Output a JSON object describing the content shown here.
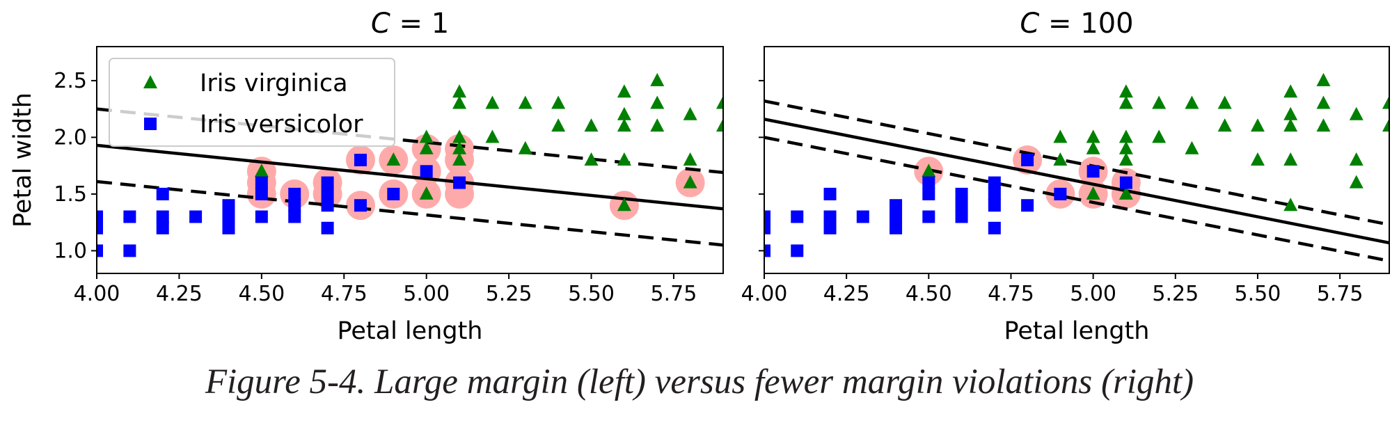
{
  "caption": "Figure 5-4. Large margin (left) versus fewer margin violations (right)",
  "colors": {
    "virginica": "#008000",
    "versicolor": "#0000ff",
    "support_vector": "#ffaaaa"
  },
  "chart_data": [
    {
      "type": "scatter",
      "title": "C = 1",
      "xlabel": "Petal length",
      "ylabel": "Petal width",
      "xlim": [
        4.0,
        5.9
      ],
      "ylim": [
        0.8,
        2.8
      ],
      "xticks": [
        "4.00",
        "4.25",
        "4.50",
        "4.75",
        "5.00",
        "5.25",
        "5.50",
        "5.75"
      ],
      "yticks": [
        "1.0",
        "1.5",
        "2.0",
        "2.5"
      ],
      "legend": {
        "position": "upper-left",
        "entries": [
          "Iris virginica",
          "Iris versicolor"
        ]
      },
      "decision_boundary": [
        [
          4.0,
          1.93
        ],
        [
          5.9,
          1.37
        ]
      ],
      "margin_upper": [
        [
          4.0,
          2.25
        ],
        [
          5.9,
          1.69
        ]
      ],
      "margin_lower": [
        [
          4.0,
          1.61
        ],
        [
          5.9,
          1.05
        ]
      ],
      "series": [
        {
          "name": "Iris virginica",
          "marker": "triangle",
          "points": [
            [
              4.5,
              1.7
            ],
            [
              4.9,
              1.8
            ],
            [
              5.0,
              2.0
            ],
            [
              5.0,
              1.9
            ],
            [
              5.0,
              1.5
            ],
            [
              5.1,
              2.4
            ],
            [
              5.1,
              2.3
            ],
            [
              5.1,
              2.0
            ],
            [
              5.1,
              1.9
            ],
            [
              5.1,
              1.8
            ],
            [
              5.2,
              2.3
            ],
            [
              5.2,
              2.0
            ],
            [
              5.3,
              2.3
            ],
            [
              5.3,
              1.9
            ],
            [
              5.4,
              2.3
            ],
            [
              5.4,
              2.1
            ],
            [
              5.5,
              2.1
            ],
            [
              5.5,
              1.8
            ],
            [
              5.6,
              2.4
            ],
            [
              5.6,
              2.2
            ],
            [
              5.6,
              2.1
            ],
            [
              5.6,
              1.8
            ],
            [
              5.6,
              1.4
            ],
            [
              5.7,
              2.5
            ],
            [
              5.7,
              2.3
            ],
            [
              5.7,
              2.1
            ],
            [
              5.8,
              2.2
            ],
            [
              5.8,
              1.8
            ],
            [
              5.8,
              1.6
            ],
            [
              5.9,
              2.3
            ],
            [
              5.9,
              2.1
            ]
          ]
        },
        {
          "name": "Iris versicolor",
          "marker": "square",
          "points": [
            [
              4.0,
              1.3
            ],
            [
              4.0,
              1.2
            ],
            [
              4.0,
              1.0
            ],
            [
              4.1,
              1.3
            ],
            [
              4.1,
              1.0
            ],
            [
              4.2,
              1.5
            ],
            [
              4.2,
              1.3
            ],
            [
              4.2,
              1.2
            ],
            [
              4.3,
              1.3
            ],
            [
              4.4,
              1.4
            ],
            [
              4.4,
              1.3
            ],
            [
              4.4,
              1.2
            ],
            [
              4.5,
              1.6
            ],
            [
              4.5,
              1.5
            ],
            [
              4.5,
              1.3
            ],
            [
              4.6,
              1.5
            ],
            [
              4.6,
              1.4
            ],
            [
              4.6,
              1.3
            ],
            [
              4.7,
              1.6
            ],
            [
              4.7,
              1.5
            ],
            [
              4.7,
              1.4
            ],
            [
              4.7,
              1.2
            ],
            [
              4.8,
              1.8
            ],
            [
              4.8,
              1.4
            ],
            [
              4.9,
              1.5
            ],
            [
              5.0,
              1.7
            ],
            [
              5.1,
              1.6
            ]
          ]
        }
      ],
      "support_vectors": [
        [
          4.5,
          1.7
        ],
        [
          4.5,
          1.6
        ],
        [
          4.5,
          1.5
        ],
        [
          4.6,
          1.5
        ],
        [
          4.7,
          1.6
        ],
        [
          4.7,
          1.5
        ],
        [
          4.8,
          1.8
        ],
        [
          4.8,
          1.4
        ],
        [
          4.9,
          1.8
        ],
        [
          4.9,
          1.5
        ],
        [
          5.0,
          1.9
        ],
        [
          5.0,
          1.7
        ],
        [
          5.0,
          1.5
        ],
        [
          5.1,
          1.9
        ],
        [
          5.1,
          1.8
        ],
        [
          5.1,
          1.6
        ],
        [
          5.1,
          1.5
        ],
        [
          5.6,
          1.4
        ],
        [
          5.8,
          1.6
        ]
      ]
    },
    {
      "type": "scatter",
      "title": "C = 100",
      "xlabel": "Petal length",
      "ylabel": "",
      "xlim": [
        4.0,
        5.9
      ],
      "ylim": [
        0.8,
        2.8
      ],
      "xticks": [
        "4.00",
        "4.25",
        "4.50",
        "4.75",
        "5.00",
        "5.25",
        "5.50",
        "5.75"
      ],
      "yticks": [],
      "decision_boundary": [
        [
          4.0,
          2.16
        ],
        [
          5.9,
          1.07
        ]
      ],
      "margin_upper": [
        [
          4.0,
          2.32
        ],
        [
          5.9,
          1.23
        ]
      ],
      "margin_lower": [
        [
          4.0,
          2.0
        ],
        [
          5.9,
          0.91
        ]
      ],
      "series": [
        {
          "name": "Iris virginica",
          "marker": "triangle",
          "points": [
            [
              4.5,
              1.7
            ],
            [
              4.9,
              2.0
            ],
            [
              4.9,
              1.8
            ],
            [
              5.0,
              2.0
            ],
            [
              5.0,
              1.9
            ],
            [
              5.0,
              1.5
            ],
            [
              5.1,
              2.4
            ],
            [
              5.1,
              2.3
            ],
            [
              5.1,
              2.0
            ],
            [
              5.1,
              1.9
            ],
            [
              5.1,
              1.8
            ],
            [
              5.1,
              1.5
            ],
            [
              5.2,
              2.3
            ],
            [
              5.2,
              2.0
            ],
            [
              5.3,
              2.3
            ],
            [
              5.3,
              1.9
            ],
            [
              5.4,
              2.3
            ],
            [
              5.4,
              2.1
            ],
            [
              5.5,
              2.1
            ],
            [
              5.5,
              1.8
            ],
            [
              5.6,
              2.4
            ],
            [
              5.6,
              2.2
            ],
            [
              5.6,
              2.1
            ],
            [
              5.6,
              1.8
            ],
            [
              5.6,
              1.4
            ],
            [
              5.7,
              2.5
            ],
            [
              5.7,
              2.3
            ],
            [
              5.7,
              2.1
            ],
            [
              5.8,
              2.2
            ],
            [
              5.8,
              1.8
            ],
            [
              5.8,
              1.6
            ],
            [
              5.9,
              2.3
            ],
            [
              5.9,
              2.1
            ]
          ]
        },
        {
          "name": "Iris versicolor",
          "marker": "square",
          "points": [
            [
              4.0,
              1.3
            ],
            [
              4.0,
              1.2
            ],
            [
              4.0,
              1.0
            ],
            [
              4.1,
              1.3
            ],
            [
              4.1,
              1.0
            ],
            [
              4.2,
              1.5
            ],
            [
              4.2,
              1.3
            ],
            [
              4.2,
              1.2
            ],
            [
              4.3,
              1.3
            ],
            [
              4.4,
              1.4
            ],
            [
              4.4,
              1.3
            ],
            [
              4.4,
              1.2
            ],
            [
              4.5,
              1.6
            ],
            [
              4.5,
              1.5
            ],
            [
              4.5,
              1.3
            ],
            [
              4.6,
              1.5
            ],
            [
              4.6,
              1.4
            ],
            [
              4.6,
              1.3
            ],
            [
              4.7,
              1.6
            ],
            [
              4.7,
              1.5
            ],
            [
              4.7,
              1.4
            ],
            [
              4.7,
              1.2
            ],
            [
              4.8,
              1.8
            ],
            [
              4.8,
              1.4
            ],
            [
              4.9,
              1.5
            ],
            [
              5.0,
              1.7
            ],
            [
              5.1,
              1.6
            ]
          ]
        }
      ],
      "support_vectors": [
        [
          4.5,
          1.7
        ],
        [
          4.8,
          1.8
        ],
        [
          4.9,
          1.5
        ],
        [
          5.0,
          1.7
        ],
        [
          5.0,
          1.5
        ],
        [
          5.1,
          1.6
        ],
        [
          5.1,
          1.5
        ]
      ]
    }
  ]
}
